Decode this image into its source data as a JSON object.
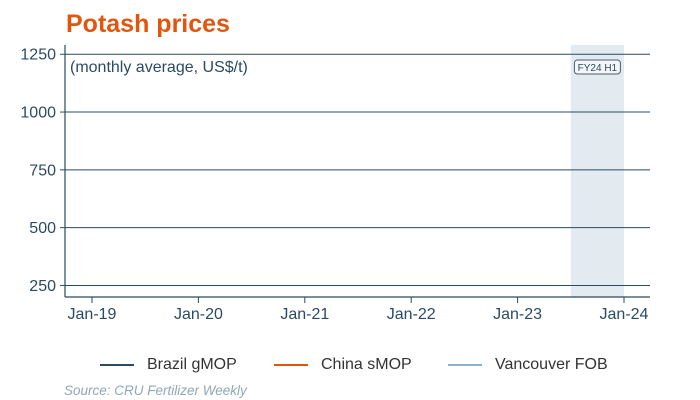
{
  "title": "Potash prices",
  "source": "Source: CRU Fertilizer Weekly",
  "chart_data": {
    "type": "line",
    "title": "Potash prices",
    "subtitle": "(monthly average, US$/t)",
    "x_ticks": [
      "Jan-19",
      "Jan-20",
      "Jan-21",
      "Jan-22",
      "Jan-23",
      "Jan-24"
    ],
    "y_ticks": [
      250,
      500,
      750,
      1000,
      1250
    ],
    "ylim": [
      200,
      1290
    ],
    "grid": "horizontal",
    "legend_position": "bottom",
    "highlight": {
      "label": "FY24 H1",
      "x_from": "Jul-23",
      "x_to": "Jan-24"
    },
    "series": [
      {
        "name": "Brazil gMOP",
        "color": "#2b4a63",
        "values": []
      },
      {
        "name": "China sMOP",
        "color": "#e2550e",
        "values": []
      },
      {
        "name": "Vancouver FOB",
        "color": "#8fb1c6",
        "values": []
      }
    ]
  }
}
